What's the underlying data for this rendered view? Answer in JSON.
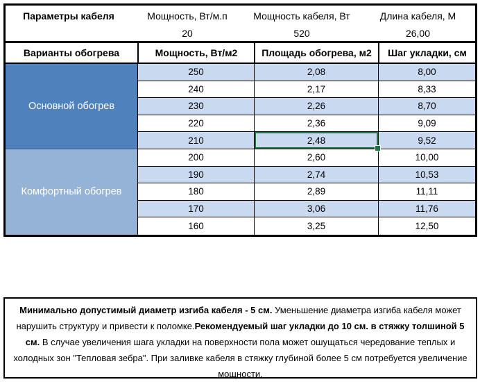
{
  "colors": {
    "section_primary_bg": "#4F81BD",
    "section_comfort_bg": "#95B3D7",
    "row_stripe_bg": "#C9D9F0",
    "selection_border": "#217346",
    "table_border": "#000000"
  },
  "params": {
    "title": "Параметры кабеля",
    "items": [
      {
        "label": "Мощность, Вт/м.п",
        "value": "20"
      },
      {
        "label": "Мощность кабеля, Вт",
        "value": "520"
      },
      {
        "label": "Длина кабеля, М",
        "value": "26,00"
      }
    ]
  },
  "table": {
    "columns": [
      "Варианты обогрева",
      "Мощность, Вт/м2",
      "Площадь обогрева, м2",
      "Шаг укладки, см"
    ],
    "sections": [
      {
        "label": "Основной обогрев",
        "color": "#4F81BD",
        "rows": [
          [
            "250",
            "2,08",
            "8,00"
          ],
          [
            "240",
            "2,17",
            "8,33"
          ],
          [
            "230",
            "2,26",
            "8,70"
          ],
          [
            "220",
            "2,36",
            "9,09"
          ],
          [
            "210",
            "2,48",
            "9,52"
          ]
        ]
      },
      {
        "label": "Комфортный обогрев",
        "color": "#95B3D7",
        "rows": [
          [
            "200",
            "2,60",
            "10,00"
          ],
          [
            "190",
            "2,74",
            "10,53"
          ],
          [
            "180",
            "2,89",
            "11,11"
          ],
          [
            "170",
            "3,06",
            "11,76"
          ],
          [
            "160",
            "3,25",
            "12,50"
          ]
        ]
      }
    ],
    "selection": {
      "row_index": 4,
      "col_index": 1,
      "value": "2,48"
    }
  },
  "note": {
    "segments": [
      {
        "bold": true,
        "text": "Минимально допустимый диаметр изгиба кабеля - 5 см."
      },
      {
        "bold": false,
        "text": "  Уменьшение диаметра изгиба кабеля может нарушить структуру и привести к поломке."
      },
      {
        "bold": true,
        "text": "Рекомендуемый шаг укладки до 10 см. в стяжку толшиной 5 см."
      },
      {
        "bold": false,
        "text": " В  случае увеличения шага укладки на поверхности пола может ошущаться чередование теплых и холодных зон \"Тепловая зебра\". При заливке кабеля в стяжку глубиной более 5 см потребуется увеличение мощности."
      }
    ]
  }
}
